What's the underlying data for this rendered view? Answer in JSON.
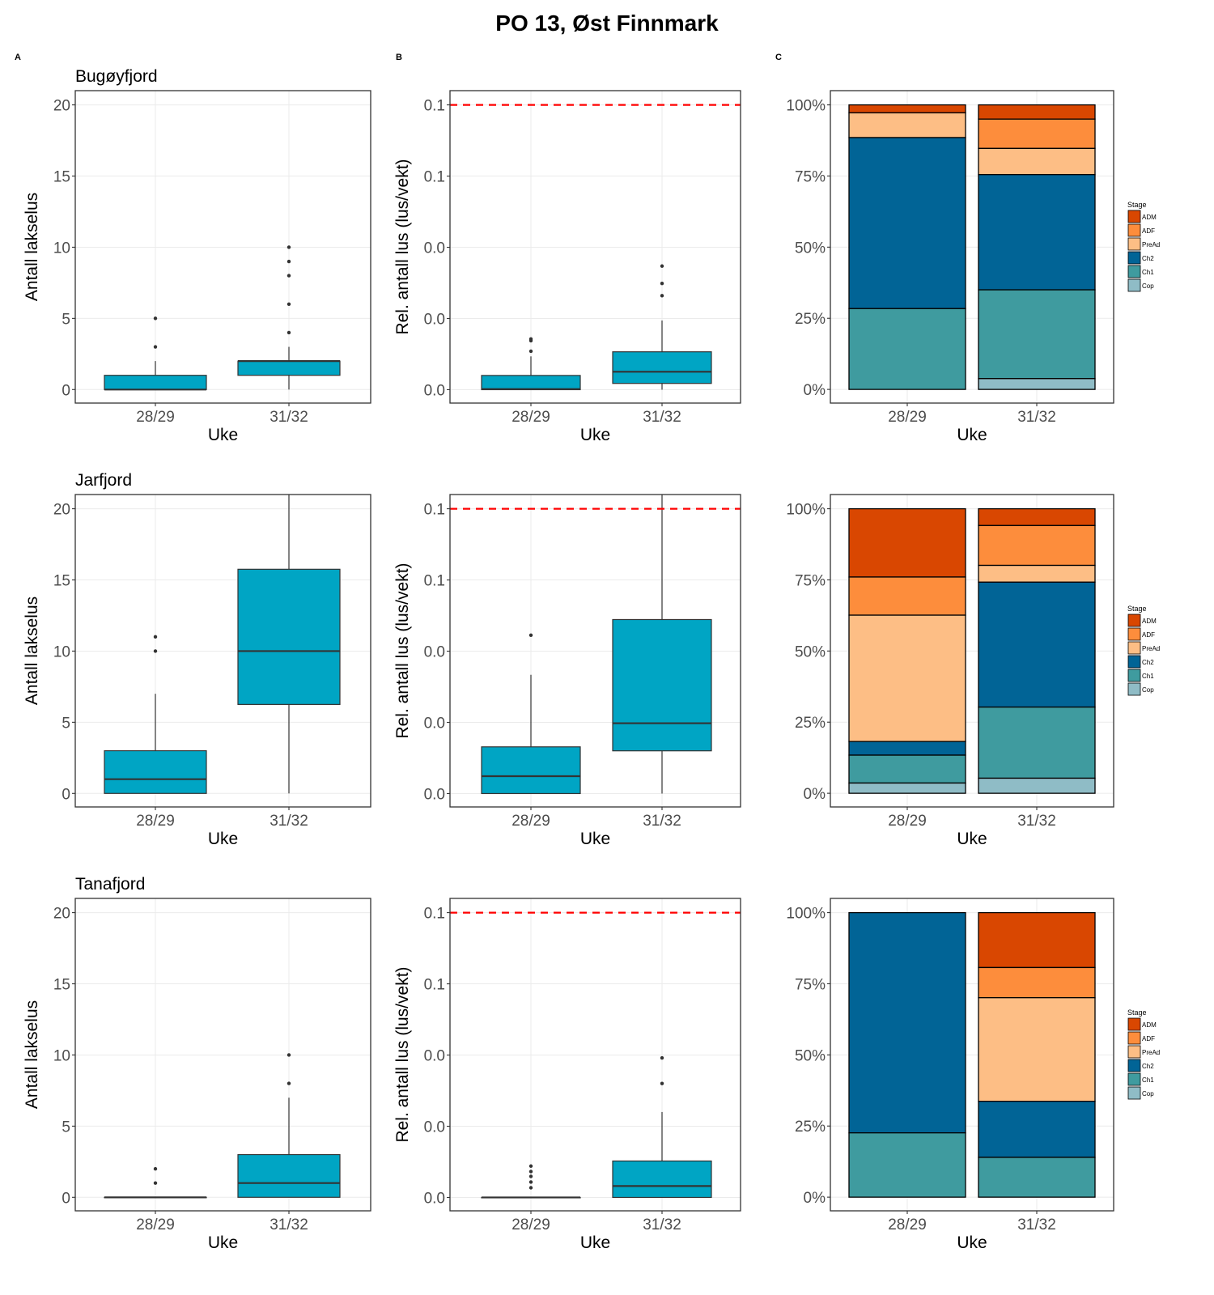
{
  "figure": {
    "title": "PO 13, Øst Finnmark",
    "panel_letters": [
      "A",
      "B",
      "C"
    ]
  },
  "colors": {
    "box_fill": "#00a5c4",
    "box_line": "#333333",
    "threshold_line": "#ff0000",
    "stages": {
      "ADM": "#d94701",
      "ADF": "#fd8d3c",
      "PreAd": "#fdbe85",
      "Ch2": "#016496",
      "Ch1": "#3f9b9f",
      "Cop": "#8fbcc6"
    }
  },
  "chart_data": [
    {
      "type": "box",
      "panel": "A",
      "row": 0,
      "facet_title": "Bugøyfjord",
      "xlabel": "Uke",
      "ylabel": "Antall lakselus",
      "categories": [
        "28/29",
        "31/32"
      ],
      "yticks": [
        0,
        5,
        10,
        15,
        20
      ],
      "ytick_labels": [
        "0",
        "5",
        "10",
        "15",
        "20"
      ],
      "ylim": [
        -0.95,
        21
      ],
      "series": [
        {
          "x": "28/29",
          "min": 0,
          "q1": 0,
          "median": 0,
          "q3": 1,
          "max": 2,
          "outliers": [
            3,
            5
          ]
        },
        {
          "x": "31/32",
          "min": 0,
          "q1": 1,
          "median": 2,
          "q3": 2,
          "max": 3,
          "outliers": [
            4,
            6,
            8,
            9,
            10
          ]
        }
      ]
    },
    {
      "type": "box",
      "panel": "B",
      "row": 0,
      "facet_title": "",
      "xlabel": "Uke",
      "ylabel": "Rel. antall lus (lus/vekt)",
      "categories": [
        "28/29",
        "31/32"
      ],
      "yticks": [
        0,
        0.025,
        0.05,
        0.075,
        0.1
      ],
      "ytick_labels": [
        "0.0",
        "0.0",
        "0.0",
        "0.1",
        "0.1"
      ],
      "ylim": [
        -0.0047,
        0.105
      ],
      "threshold": 0.1,
      "series": [
        {
          "x": "28/29",
          "min": 0,
          "q1": 0,
          "median": 0.0002,
          "q3": 0.005,
          "max": 0.0117,
          "outliers": [
            0.0135,
            0.0172,
            0.0178
          ]
        },
        {
          "x": "31/32",
          "min": 0,
          "q1": 0.0022,
          "median": 0.0063,
          "q3": 0.0133,
          "max": 0.0243,
          "outliers": [
            0.033,
            0.0373,
            0.0434
          ]
        }
      ]
    },
    {
      "type": "stacked_bar",
      "panel": "C",
      "row": 0,
      "xlabel": "Uke",
      "ylabel": "",
      "categories": [
        "28/29",
        "31/32"
      ],
      "yticks": [
        0,
        25,
        50,
        75,
        100
      ],
      "ytick_labels": [
        "0%",
        "25%",
        "50%",
        "75%",
        "100%"
      ],
      "ylim": [
        -4.8,
        105
      ],
      "legend_title": "Stage",
      "legend_placement": "right",
      "stages": [
        "ADM",
        "ADF",
        "PreAd",
        "Ch2",
        "Ch1",
        "Cop"
      ],
      "series": [
        {
          "name": "ADM",
          "values": [
            2.8,
            5.0
          ]
        },
        {
          "name": "ADF",
          "values": [
            0,
            10.3
          ]
        },
        {
          "name": "PreAd",
          "values": [
            8.7,
            9.2
          ]
        },
        {
          "name": "Ch2",
          "values": [
            60.1,
            40.5
          ]
        },
        {
          "name": "Ch1",
          "values": [
            28.4,
            31.2
          ]
        },
        {
          "name": "Cop",
          "values": [
            0,
            3.8
          ]
        }
      ]
    },
    {
      "type": "box",
      "panel": "A",
      "row": 1,
      "facet_title": "Jarfjord",
      "xlabel": "Uke",
      "ylabel": "Antall lakselus",
      "categories": [
        "28/29",
        "31/32"
      ],
      "yticks": [
        0,
        5,
        10,
        15,
        20
      ],
      "ytick_labels": [
        "0",
        "5",
        "10",
        "15",
        "20"
      ],
      "ylim": [
        -0.95,
        21
      ],
      "series": [
        {
          "x": "28/29",
          "min": 0,
          "q1": 0,
          "median": 1,
          "q3": 3,
          "max": 7,
          "outliers": [
            10,
            11
          ]
        },
        {
          "x": "31/32",
          "min": 0,
          "q1": 6.25,
          "median": 10,
          "q3": 15.75,
          "max": 25,
          "outliers": []
        }
      ]
    },
    {
      "type": "box",
      "panel": "B",
      "row": 1,
      "facet_title": "",
      "xlabel": "Uke",
      "ylabel": "Rel. antall lus (lus/vekt)",
      "categories": [
        "28/29",
        "31/32"
      ],
      "yticks": [
        0,
        0.025,
        0.05,
        0.075,
        0.1
      ],
      "ytick_labels": [
        "0.0",
        "0.0",
        "0.0",
        "0.1",
        "0.1"
      ],
      "ylim": [
        -0.0047,
        0.105
      ],
      "threshold": 0.1,
      "series": [
        {
          "x": "28/29",
          "min": 0,
          "q1": 0,
          "median": 0.0061,
          "q3": 0.0164,
          "max": 0.0417,
          "outliers": [
            0.0556
          ]
        },
        {
          "x": "31/32",
          "min": 0,
          "q1": 0.015,
          "median": 0.0247,
          "q3": 0.0611,
          "max": 0.12,
          "outliers": []
        }
      ]
    },
    {
      "type": "stacked_bar",
      "panel": "C",
      "row": 1,
      "xlabel": "Uke",
      "ylabel": "",
      "categories": [
        "28/29",
        "31/32"
      ],
      "yticks": [
        0,
        25,
        50,
        75,
        100
      ],
      "ytick_labels": [
        "0%",
        "25%",
        "50%",
        "75%",
        "100%"
      ],
      "ylim": [
        -4.8,
        105
      ],
      "legend_title": "Stage",
      "legend_placement": "right",
      "stages": [
        "ADM",
        "ADF",
        "PreAd",
        "Ch2",
        "Ch1",
        "Cop"
      ],
      "series": [
        {
          "name": "ADM",
          "values": [
            24.0,
            5.9
          ]
        },
        {
          "name": "ADF",
          "values": [
            13.4,
            14.0
          ]
        },
        {
          "name": "PreAd",
          "values": [
            44.4,
            5.9
          ]
        },
        {
          "name": "Ch2",
          "values": [
            4.8,
            43.9
          ]
        },
        {
          "name": "Ch1",
          "values": [
            9.8,
            25.0
          ]
        },
        {
          "name": "Cop",
          "values": [
            3.6,
            5.3
          ]
        }
      ]
    },
    {
      "type": "box",
      "panel": "A",
      "row": 2,
      "facet_title": "Tanafjord",
      "xlabel": "Uke",
      "ylabel": "Antall lakselus",
      "categories": [
        "28/29",
        "31/32"
      ],
      "yticks": [
        0,
        5,
        10,
        15,
        20
      ],
      "ytick_labels": [
        "0",
        "5",
        "10",
        "15",
        "20"
      ],
      "ylim": [
        -0.95,
        21
      ],
      "series": [
        {
          "x": "28/29",
          "min": 0,
          "q1": 0,
          "median": 0,
          "q3": 0,
          "max": 0,
          "outliers": [
            1,
            2
          ]
        },
        {
          "x": "31/32",
          "min": 0,
          "q1": 0,
          "median": 1,
          "q3": 3,
          "max": 7,
          "outliers": [
            8,
            10
          ]
        }
      ]
    },
    {
      "type": "box",
      "panel": "B",
      "row": 2,
      "facet_title": "",
      "xlabel": "Uke",
      "ylabel": "Rel. antall lus (lus/vekt)",
      "categories": [
        "28/29",
        "31/32"
      ],
      "yticks": [
        0,
        0.025,
        0.05,
        0.075,
        0.1
      ],
      "ytick_labels": [
        "0.0",
        "0.0",
        "0.0",
        "0.1",
        "0.1"
      ],
      "ylim": [
        -0.0047,
        0.105
      ],
      "threshold": 0.1,
      "series": [
        {
          "x": "28/29",
          "min": 0,
          "q1": 0,
          "median": 0,
          "q3": 0,
          "max": 0,
          "outliers": [
            0.0034,
            0.0054,
            0.0074,
            0.0091,
            0.011
          ]
        },
        {
          "x": "31/32",
          "min": 0,
          "q1": 0,
          "median": 0.004,
          "q3": 0.0128,
          "max": 0.03,
          "outliers": [
            0.04,
            0.049
          ]
        }
      ]
    },
    {
      "type": "stacked_bar",
      "panel": "C",
      "row": 2,
      "xlabel": "Uke",
      "ylabel": "",
      "categories": [
        "28/29",
        "31/32"
      ],
      "yticks": [
        0,
        25,
        50,
        75,
        100
      ],
      "ytick_labels": [
        "0%",
        "25%",
        "50%",
        "75%",
        "100%"
      ],
      "ylim": [
        -4.8,
        105
      ],
      "legend_title": "Stage",
      "legend_placement": "right",
      "stages": [
        "ADM",
        "ADF",
        "PreAd",
        "Ch2",
        "Ch1",
        "Cop"
      ],
      "series": [
        {
          "name": "ADM",
          "values": [
            0,
            19.3
          ]
        },
        {
          "name": "ADF",
          "values": [
            0,
            10.6
          ]
        },
        {
          "name": "PreAd",
          "values": [
            0,
            36.4
          ]
        },
        {
          "name": "Ch2",
          "values": [
            77.4,
            19.7
          ]
        },
        {
          "name": "Ch1",
          "values": [
            22.6,
            14.0
          ]
        },
        {
          "name": "Cop",
          "values": [
            0,
            0
          ]
        }
      ]
    }
  ]
}
